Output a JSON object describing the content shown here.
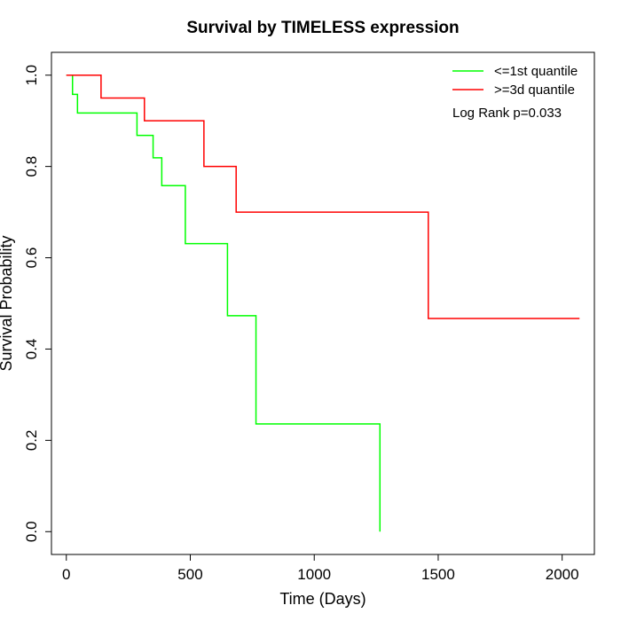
{
  "chart_data": {
    "type": "line",
    "subtype": "kaplan-meier-step",
    "title": "Survival by TIMELESS expression",
    "xlabel": "Time (Days)",
    "ylabel": "Survival Probability",
    "xlim": [
      -60,
      2130
    ],
    "ylim": [
      -0.05,
      1.05
    ],
    "x_ticks": [
      0,
      500,
      1000,
      1500,
      2000
    ],
    "y_ticks": [
      0.0,
      0.2,
      0.4,
      0.6,
      0.8,
      1.0
    ],
    "x_tick_labels": [
      "0",
      "500",
      "1000",
      "1500",
      "2000"
    ],
    "y_tick_labels": [
      "0.0",
      "0.2",
      "0.4",
      "0.6",
      "0.8",
      "1.0"
    ],
    "grid": false,
    "legend_position": "top-right",
    "annotation": "Log Rank p=0.033",
    "series": [
      {
        "name": "<=1st quantile",
        "color": "#00ff00",
        "x": [
          0,
          25,
          45,
          285,
          350,
          385,
          480,
          650,
          765,
          1265,
          1265
        ],
        "y": [
          1.0,
          0.958,
          0.917,
          0.868,
          0.819,
          0.758,
          0.631,
          0.473,
          0.236,
          0.236,
          0.0
        ]
      },
      {
        "name": ">=3d quantile",
        "color": "#ff0000",
        "x": [
          0,
          140,
          315,
          555,
          685,
          1460,
          2070
        ],
        "y": [
          1.0,
          0.95,
          0.9,
          0.8,
          0.7,
          0.467,
          0.467
        ]
      }
    ]
  }
}
